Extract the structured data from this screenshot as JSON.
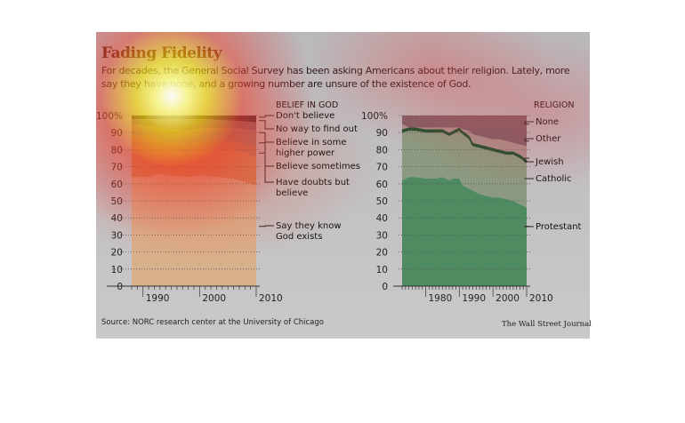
{
  "title": "Fading Fidelity",
  "subtitle": "For decades, the General Social Survey has been asking Americans about their religion. Lately, more say they have none, and a growing number are unsure of the existence of God.",
  "source": "Source: NORC research center at the University of Chicago",
  "credit": "The Wall Street Journal",
  "chart_data": [
    {
      "type": "area",
      "stacked": true,
      "title": "BELIEF IN GOD",
      "ylim": [
        0,
        100
      ],
      "xlim": [
        1988,
        2010
      ],
      "yticks": [
        "0",
        "10",
        "20",
        "30",
        "40",
        "50",
        "60",
        "70",
        "80",
        "90",
        "100%"
      ],
      "xticks": [
        "1990",
        "2000",
        "2010"
      ],
      "grid": "horizontal dotted",
      "x": [
        1988,
        1991,
        1993,
        1994,
        1998,
        2000,
        2006,
        2008
      ],
      "series": [
        {
          "name": "Say they know God exists",
          "color": "#d9b08c",
          "cumulative": [
            64,
            64,
            66,
            65,
            64,
            65,
            63,
            59
          ]
        },
        {
          "name": "Have doubts but believe",
          "color": "#cf8b5c",
          "cumulative": [
            82,
            82,
            81,
            80,
            78,
            81,
            80,
            76
          ]
        },
        {
          "name": "Believe sometimes",
          "color": "#b9805e",
          "cumulative": [
            88,
            88,
            86,
            85,
            83,
            85,
            85,
            82
          ]
        },
        {
          "name": "Believe in some higher power",
          "color": "#9d7a72",
          "cumulative": [
            95,
            94,
            93,
            92,
            91,
            93,
            93,
            91
          ]
        },
        {
          "name": "No way to find out",
          "color": "#7d6470",
          "cumulative": [
            98,
            98,
            98,
            98,
            98,
            98,
            97,
            96
          ]
        },
        {
          "name": "Don't believe",
          "color": "#3a2a3a",
          "cumulative": [
            100,
            100,
            100,
            100,
            100,
            100,
            100,
            100
          ]
        }
      ]
    },
    {
      "type": "area",
      "stacked": true,
      "title": "RELIGION",
      "ylim": [
        0,
        100
      ],
      "xlim": [
        1973,
        2010
      ],
      "yticks": [
        "0",
        "10",
        "20",
        "30",
        "40",
        "50",
        "60",
        "70",
        "80",
        "90",
        "100%"
      ],
      "xticks": [
        "1980",
        "1990",
        "2000",
        "2010"
      ],
      "grid": "horizontal dotted",
      "x": [
        1973,
        1975,
        1977,
        1980,
        1983,
        1985,
        1987,
        1988,
        1989,
        1990,
        1991,
        1993,
        1994,
        1996,
        1998,
        2000,
        2002,
        2004,
        2006,
        2008,
        2010
      ],
      "series": [
        {
          "name": "Protestant",
          "color": "#4f8a60",
          "cumulative": [
            62,
            64,
            64,
            63,
            63,
            64,
            62,
            63,
            63,
            63,
            59,
            57,
            56,
            54,
            53,
            52,
            52,
            51,
            50,
            48,
            46
          ]
        },
        {
          "name": "Catholic",
          "color": "#8b9a80",
          "cumulative": [
            90,
            91,
            91,
            90,
            90,
            90,
            88,
            89,
            90,
            91,
            89,
            86,
            82,
            81,
            80,
            79,
            78,
            77,
            77,
            75,
            72
          ]
        },
        {
          "name": "Jewish",
          "color": "#1f5a33",
          "cumulative": [
            92,
            93,
            93,
            92,
            92,
            92,
            90,
            91,
            92,
            93,
            91,
            88,
            84,
            83,
            82,
            81,
            80,
            79,
            79,
            77,
            74
          ]
        },
        {
          "name": "Other",
          "color": "#a8908c",
          "cumulative": [
            95,
            93,
            93,
            93,
            93,
            93,
            93,
            93,
            93,
            93,
            92,
            91,
            89,
            88,
            87,
            86,
            86,
            85,
            84,
            83,
            82
          ]
        },
        {
          "name": "None",
          "color": "#7e6068",
          "cumulative": [
            100,
            100,
            100,
            100,
            100,
            100,
            100,
            100,
            100,
            100,
            100,
            100,
            100,
            100,
            100,
            100,
            100,
            100,
            100,
            100,
            100
          ]
        }
      ]
    }
  ]
}
